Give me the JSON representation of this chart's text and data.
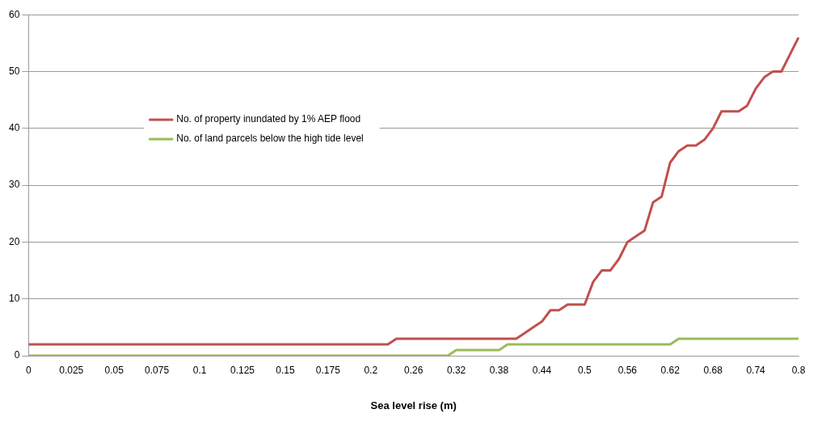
{
  "chart_data": {
    "type": "line",
    "xlabel": "Sea level rise (m)",
    "categories": [
      "0",
      null,
      null,
      null,
      null,
      "0.025",
      null,
      null,
      null,
      null,
      "0.05",
      null,
      null,
      null,
      null,
      "0.075",
      null,
      null,
      null,
      null,
      "0.1",
      null,
      null,
      null,
      null,
      "0.125",
      null,
      null,
      null,
      null,
      "0.15",
      null,
      null,
      null,
      null,
      "0.175",
      null,
      null,
      null,
      null,
      "0.2",
      null,
      null,
      null,
      null,
      "0.26",
      null,
      null,
      null,
      null,
      "0.32",
      null,
      null,
      null,
      null,
      "0.38",
      null,
      null,
      null,
      null,
      "0.44",
      null,
      null,
      null,
      null,
      "0.5",
      null,
      null,
      null,
      null,
      "0.56",
      null,
      null,
      null,
      null,
      "0.62",
      null,
      null,
      null,
      null,
      "0.68",
      null,
      null,
      null,
      null,
      "0.74",
      null,
      null,
      null,
      null,
      "0.8"
    ],
    "series": [
      {
        "name": "No. of property inundated by 1% AEP flood",
        "color": "#c0504d",
        "values": [
          2,
          2,
          2,
          2,
          2,
          2,
          2,
          2,
          2,
          2,
          2,
          2,
          2,
          2,
          2,
          2,
          2,
          2,
          2,
          2,
          2,
          2,
          2,
          2,
          2,
          2,
          2,
          2,
          2,
          2,
          2,
          2,
          2,
          2,
          2,
          2,
          2,
          2,
          2,
          2,
          2,
          2,
          2,
          3,
          3,
          3,
          3,
          3,
          3,
          3,
          3,
          3,
          3,
          3,
          3,
          3,
          3,
          3,
          4,
          5,
          6,
          8,
          8,
          9,
          9,
          9,
          13,
          15,
          15,
          17,
          20,
          21,
          22,
          27,
          28,
          34,
          36,
          37,
          37,
          38,
          40,
          43,
          43,
          43,
          44,
          47,
          49,
          50,
          50,
          53,
          56
        ]
      },
      {
        "name": "No. of land parcels below the high tide level",
        "color": "#9bbb59",
        "values": [
          0,
          0,
          0,
          0,
          0,
          0,
          0,
          0,
          0,
          0,
          0,
          0,
          0,
          0,
          0,
          0,
          0,
          0,
          0,
          0,
          0,
          0,
          0,
          0,
          0,
          0,
          0,
          0,
          0,
          0,
          0,
          0,
          0,
          0,
          0,
          0,
          0,
          0,
          0,
          0,
          0,
          0,
          0,
          0,
          0,
          0,
          0,
          0,
          0,
          0,
          1,
          1,
          1,
          1,
          1,
          1,
          2,
          2,
          2,
          2,
          2,
          2,
          2,
          2,
          2,
          2,
          2,
          2,
          2,
          2,
          2,
          2,
          2,
          2,
          2,
          2,
          3,
          3,
          3,
          3,
          3,
          3,
          3,
          3,
          3,
          3,
          3,
          3,
          3,
          3,
          3
        ]
      }
    ],
    "ylim": [
      0,
      60
    ],
    "yticks": [
      0,
      10,
      20,
      30,
      40,
      50,
      60
    ],
    "grid": "y",
    "legend": "left",
    "marker": "none",
    "line_style": "solid"
  }
}
